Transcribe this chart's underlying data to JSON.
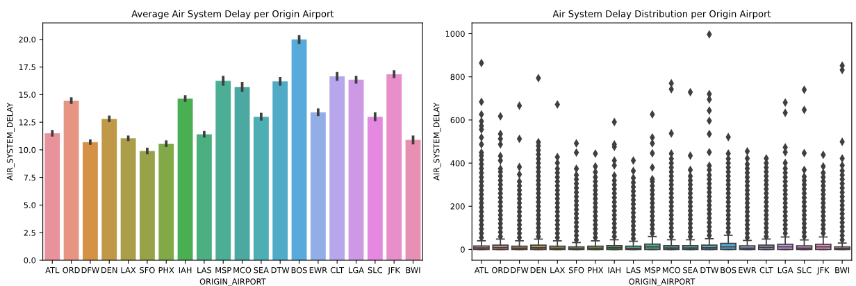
{
  "chart_data": [
    {
      "type": "bar",
      "title": "Average Air System Delay per Origin Airport",
      "xlabel": "ORIGIN_AIRPORT",
      "ylabel": "AIR_SYSTEM_DELAY",
      "categories": [
        "ATL",
        "ORD",
        "DFW",
        "DEN",
        "LAX",
        "SFO",
        "PHX",
        "IAH",
        "LAS",
        "MSP",
        "MCO",
        "SEA",
        "DTW",
        "BOS",
        "EWR",
        "CLT",
        "LGA",
        "SLC",
        "JFK",
        "BWI"
      ],
      "values": [
        11.5,
        14.45,
        10.7,
        12.8,
        11.05,
        9.9,
        10.55,
        14.65,
        11.4,
        16.25,
        15.7,
        13.0,
        16.2,
        20.0,
        13.4,
        16.65,
        16.35,
        13.0,
        16.85,
        10.9
      ],
      "errors": [
        0.3,
        0.3,
        0.25,
        0.3,
        0.25,
        0.3,
        0.3,
        0.3,
        0.3,
        0.45,
        0.45,
        0.35,
        0.4,
        0.4,
        0.35,
        0.4,
        0.35,
        0.4,
        0.35,
        0.4
      ],
      "colors": [
        "#e8929c",
        "#e59582",
        "#d59247",
        "#bf9848",
        "#aa9f48",
        "#98a349",
        "#82a947",
        "#4aae52",
        "#4caf82",
        "#4dae96",
        "#4ca9a2",
        "#4daeb4",
        "#51abc6",
        "#57aadb",
        "#93aee6",
        "#b7a6eb",
        "#cd98e4",
        "#e589e0",
        "#e88ec8",
        "#e890b4"
      ],
      "ylim": [
        0,
        21.5
      ],
      "yticks": [
        {
          "value": 0,
          "label": "0.0"
        },
        {
          "value": 2.5,
          "label": "2.5"
        },
        {
          "value": 5,
          "label": "5.0"
        },
        {
          "value": 7.5,
          "label": "7.5"
        },
        {
          "value": 10,
          "label": "10.0"
        },
        {
          "value": 12.5,
          "label": "12.5"
        },
        {
          "value": 15,
          "label": "15.0"
        },
        {
          "value": 17.5,
          "label": "17.5"
        },
        {
          "value": 20,
          "label": "20.0"
        }
      ],
      "grid": false
    },
    {
      "type": "box",
      "title": "Air System Delay Distribution per Origin Airport",
      "xlabel": "ORIGIN_AIRPORT",
      "ylabel": "AIR_SYSTEM_DELAY",
      "categories": [
        "ATL",
        "ORD",
        "DFW",
        "DEN",
        "LAX",
        "SFO",
        "PHX",
        "IAH",
        "LAS",
        "MSP",
        "MCO",
        "SEA",
        "DTW",
        "BOS",
        "EWR",
        "CLT",
        "LGA",
        "SLC",
        "JFK",
        "BWI"
      ],
      "colors": [
        "#e8929c",
        "#e59582",
        "#d59247",
        "#bf9848",
        "#aa9f48",
        "#98a349",
        "#82a947",
        "#4aae52",
        "#4caf82",
        "#4dae96",
        "#4ca9a2",
        "#4daeb4",
        "#51abc6",
        "#57aadb",
        "#93aee6",
        "#b7a6eb",
        "#cd98e4",
        "#e589e0",
        "#e88ec8",
        "#e890b4"
      ],
      "boxes": [
        {
          "low": 0,
          "q1": 0,
          "median": 7,
          "q3": 16,
          "high": 40,
          "outliers": [
            55,
            75,
            95,
            115,
            135,
            155,
            175,
            195,
            215,
            235,
            255,
            275,
            295,
            315,
            335,
            355,
            375,
            395,
            415,
            435,
            449,
            487,
            519,
            556,
            572,
            594,
            626,
            684,
            864
          ]
        },
        {
          "low": 0,
          "q1": 0,
          "median": 9,
          "q3": 20,
          "high": 48,
          "outliers": [
            60,
            80,
            100,
            120,
            140,
            160,
            180,
            200,
            220,
            240,
            260,
            280,
            300,
            320,
            340,
            360,
            374,
            412,
            433,
            487,
            513,
            535,
            617
          ]
        },
        {
          "low": 0,
          "q1": 0,
          "median": 6,
          "q3": 15,
          "high": 40,
          "outliers": [
            55,
            75,
            95,
            115,
            135,
            155,
            175,
            195,
            215,
            235,
            255,
            275,
            295,
            315,
            348,
            382,
            513,
            666
          ]
        },
        {
          "low": 0,
          "q1": 0,
          "median": 8,
          "q3": 20,
          "high": 48,
          "outliers": [
            60,
            80,
            100,
            120,
            140,
            160,
            180,
            200,
            220,
            240,
            260,
            280,
            300,
            320,
            340,
            360,
            380,
            400,
            420,
            440,
            460,
            480,
            497,
            794
          ]
        },
        {
          "low": 0,
          "q1": 0,
          "median": 6,
          "q3": 15,
          "high": 40,
          "outliers": [
            55,
            75,
            95,
            115,
            135,
            155,
            175,
            195,
            215,
            235,
            255,
            275,
            295,
            315,
            335,
            355,
            374,
            401,
            428,
            672
          ]
        },
        {
          "low": 0,
          "q1": 0,
          "median": 4,
          "q3": 12,
          "high": 32,
          "outliers": [
            45,
            65,
            85,
            105,
            125,
            145,
            165,
            185,
            205,
            225,
            245,
            265,
            285,
            305,
            325,
            345,
            374,
            449,
            492
          ]
        },
        {
          "low": 0,
          "q1": 0,
          "median": 6,
          "q3": 15,
          "high": 40,
          "outliers": [
            55,
            75,
            95,
            115,
            135,
            155,
            175,
            195,
            215,
            235,
            255,
            275,
            295,
            315,
            335,
            358,
            385,
            444
          ]
        },
        {
          "low": 0,
          "q1": 0,
          "median": 8,
          "q3": 18,
          "high": 45,
          "outliers": [
            60,
            80,
            100,
            120,
            140,
            160,
            180,
            200,
            220,
            240,
            260,
            280,
            300,
            320,
            342,
            390,
            412,
            476,
            487,
            591
          ]
        },
        {
          "low": 0,
          "q1": 0,
          "median": 5,
          "q3": 15,
          "high": 38,
          "outliers": [
            50,
            70,
            90,
            110,
            130,
            150,
            170,
            190,
            210,
            230,
            250,
            270,
            290,
            310,
            332,
            364,
            412
          ]
        },
        {
          "low": 0,
          "q1": 0,
          "median": 12,
          "q3": 25,
          "high": 60,
          "outliers": [
            75,
            95,
            115,
            135,
            155,
            175,
            195,
            215,
            235,
            255,
            275,
            295,
            315,
            326,
            380,
            446,
            492,
            519,
            626
          ]
        },
        {
          "low": 0,
          "q1": 0,
          "median": 7,
          "q3": 18,
          "high": 45,
          "outliers": [
            60,
            80,
            100,
            120,
            140,
            160,
            180,
            200,
            220,
            240,
            260,
            280,
            300,
            320,
            340,
            360,
            380,
            400,
            420,
            444,
            538,
            743,
            770
          ]
        },
        {
          "low": 0,
          "q1": 0,
          "median": 7,
          "q3": 18,
          "high": 45,
          "outliers": [
            60,
            80,
            100,
            120,
            140,
            160,
            180,
            200,
            220,
            240,
            260,
            280,
            300,
            320,
            340,
            369,
            435,
            729
          ]
        },
        {
          "low": 0,
          "q1": 0,
          "median": 8,
          "q3": 20,
          "high": 50,
          "outliers": [
            65,
            85,
            105,
            125,
            145,
            165,
            185,
            205,
            225,
            245,
            265,
            285,
            305,
            325,
            345,
            369,
            388,
            451,
            535,
            596,
            644,
            695,
            720,
            997
          ]
        },
        {
          "low": 0,
          "q1": 0,
          "median": 12,
          "q3": 28,
          "high": 66,
          "outliers": [
            80,
            100,
            120,
            140,
            160,
            180,
            200,
            220,
            240,
            260,
            280,
            300,
            320,
            340,
            360,
            380,
            400,
            420,
            444,
            521
          ]
        },
        {
          "low": 0,
          "q1": 0,
          "median": 6,
          "q3": 17,
          "high": 42,
          "outliers": [
            55,
            75,
            95,
            115,
            135,
            155,
            175,
            195,
            215,
            235,
            255,
            275,
            295,
            315,
            335,
            355,
            375,
            395,
            422,
            455
          ]
        },
        {
          "low": 0,
          "q1": 0,
          "median": 10,
          "q3": 20,
          "high": 48,
          "outliers": [
            60,
            80,
            100,
            120,
            140,
            160,
            180,
            200,
            220,
            240,
            260,
            280,
            300,
            320,
            340,
            360,
            380,
            400,
            422
          ]
        },
        {
          "low": 0,
          "q1": 0,
          "median": 12,
          "q3": 24,
          "high": 58,
          "outliers": [
            75,
            95,
            115,
            135,
            155,
            175,
            195,
            215,
            235,
            255,
            275,
            295,
            315,
            335,
            355,
            375,
            401,
            451,
            473,
            633,
            681
          ]
        },
        {
          "low": 0,
          "q1": 0,
          "median": 6,
          "q3": 17,
          "high": 44,
          "outliers": [
            60,
            80,
            100,
            120,
            140,
            160,
            180,
            200,
            220,
            240,
            260,
            280,
            300,
            320,
            337,
            369,
            447,
            647,
            740
          ]
        },
        {
          "low": 0,
          "q1": 0,
          "median": 12,
          "q3": 24,
          "high": 58,
          "outliers": [
            75,
            95,
            115,
            135,
            155,
            175,
            195,
            215,
            235,
            255,
            275,
            295,
            315,
            335,
            355,
            385,
            439
          ]
        },
        {
          "low": 0,
          "q1": 0,
          "median": 5,
          "q3": 12,
          "high": 30,
          "outliers": [
            45,
            65,
            85,
            105,
            125,
            145,
            165,
            185,
            205,
            225,
            245,
            265,
            285,
            305,
            325,
            345,
            365,
            390,
            422,
            499,
            832,
            852
          ]
        }
      ],
      "ylim": [
        -50,
        1050
      ],
      "yticks": [
        0,
        200,
        400,
        600,
        800,
        1000
      ],
      "grid": false
    }
  ]
}
